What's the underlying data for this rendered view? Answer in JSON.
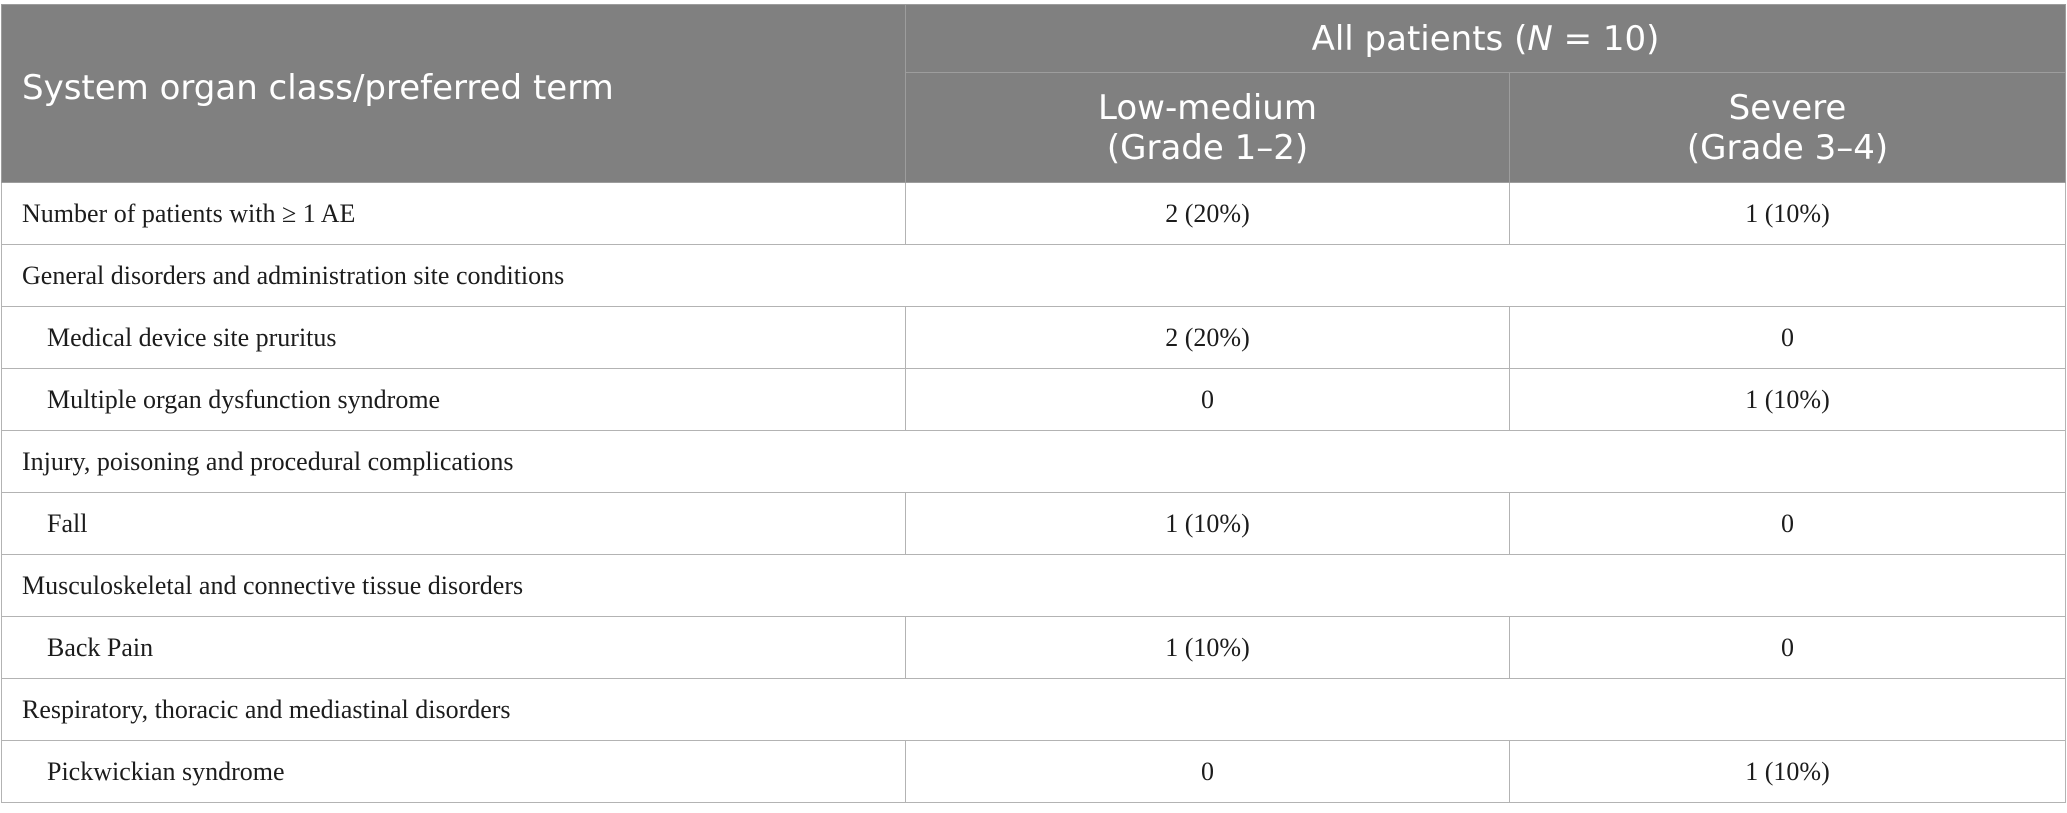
{
  "header": {
    "first_column": "System organ class/preferred term",
    "group_title_prefix": "All patients (",
    "group_title_n": "N",
    "group_title_suffix": " = 10)",
    "col_low_line1": "Low-medium",
    "col_low_line2": "(Grade 1–2)",
    "col_severe_line1": "Severe",
    "col_severe_line2": "(Grade 3–4)"
  },
  "rows": [
    {
      "label": "Number of patients with ≥ 1 AE",
      "low": "2 (20%)",
      "severe": "1 (10%)"
    },
    {
      "label": "General disorders and administration site conditions"
    },
    {
      "label": "Medical device site pruritus",
      "low": "2 (20%)",
      "severe": "0"
    },
    {
      "label": "Multiple organ dysfunction syndrome",
      "low": "0",
      "severe": "1 (10%)"
    },
    {
      "label": "Injury, poisoning and procedural complications"
    },
    {
      "label": "Fall",
      "low": "1 (10%)",
      "severe": "0"
    },
    {
      "label": "Musculoskeletal and connective tissue disorders"
    },
    {
      "label": "Back Pain",
      "low": "1 (10%)",
      "severe": "0"
    },
    {
      "label": "Respiratory, thoracic and mediastinal disorders"
    },
    {
      "label": "Pickwickian syndrome",
      "low": "0",
      "severe": "1 (10%)"
    }
  ]
}
